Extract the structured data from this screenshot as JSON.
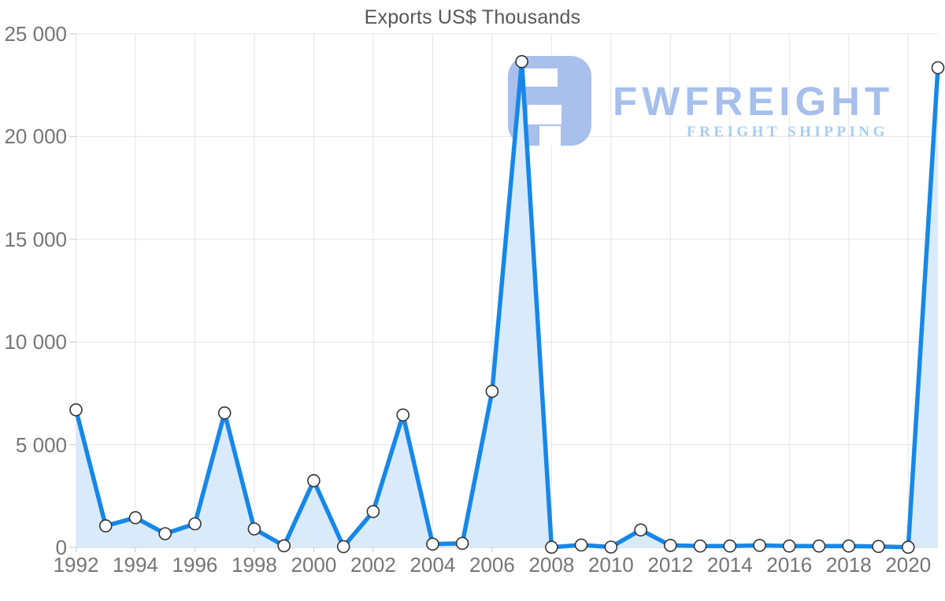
{
  "title": "Exports US$ Thousands",
  "watermark": {
    "brand": "FWFREIGHT",
    "tagline": "FREIGHT SHIPPING",
    "brand_color": "#a6bfec",
    "tagline_color": "#a5cdf2",
    "icon_color": "#a9c0ed"
  },
  "axes": {
    "label_color": "#757575",
    "grid_color": "#e4e4e4",
    "axis_color": "#c8c8c8",
    "title_color": "#575757"
  },
  "chart_data": {
    "type": "area",
    "title": "Exports US$ Thousands",
    "x": [
      1992,
      1993,
      1994,
      1995,
      1996,
      1997,
      1998,
      1999,
      2000,
      2001,
      2002,
      2003,
      2004,
      2005,
      2006,
      2007,
      2008,
      2009,
      2010,
      2011,
      2012,
      2013,
      2014,
      2015,
      2016,
      2017,
      2018,
      2019,
      2020,
      2021
    ],
    "series": [
      {
        "name": "Exports US$ Thousands",
        "values": [
          6700,
          1050,
          1450,
          670,
          1150,
          6550,
          900,
          80,
          3250,
          40,
          1750,
          6450,
          160,
          200,
          7600,
          23650,
          10,
          120,
          20,
          850,
          100,
          70,
          70,
          100,
          70,
          70,
          70,
          50,
          10,
          23350
        ]
      }
    ],
    "xlim": [
      1992,
      2021
    ],
    "ylim": [
      0,
      25000
    ],
    "y_ticks": [
      0,
      5000,
      10000,
      15000,
      20000,
      25000
    ],
    "y_tick_labels": [
      "0",
      "5 000",
      "10 000",
      "15 000",
      "20 000",
      "25 000"
    ],
    "x_ticks": [
      1992,
      1994,
      1996,
      1998,
      2000,
      2002,
      2004,
      2006,
      2008,
      2010,
      2012,
      2014,
      2016,
      2018,
      2020
    ],
    "grid": true,
    "legend": false,
    "line_color": "#1787e8",
    "fill_color": "#d9eafb",
    "marker_fill": "#ffffff",
    "marker_stroke": "#333333"
  }
}
